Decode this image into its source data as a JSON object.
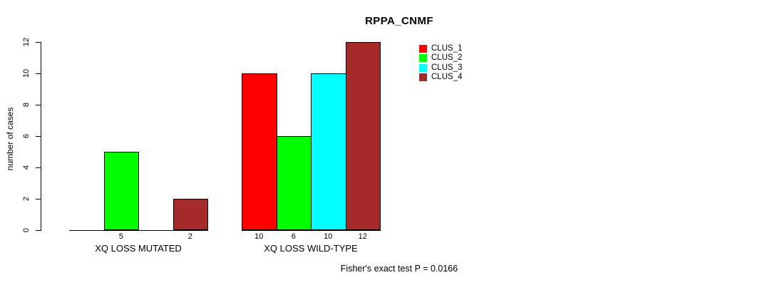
{
  "chart_data": {
    "type": "bar",
    "title": "RPPA_CNMF",
    "ylabel": "number of cases",
    "xlabel": "",
    "ylim": [
      0,
      12
    ],
    "yticks": [
      0,
      2,
      4,
      6,
      8,
      10,
      12
    ],
    "grid": false,
    "legend_position": "top-right-inside",
    "series": [
      {
        "name": "CLUS_1",
        "color": "#FF0000"
      },
      {
        "name": "CLUS_2",
        "color": "#00FF00"
      },
      {
        "name": "CLUS_3",
        "color": "#00FFFF"
      },
      {
        "name": "CLUS_4",
        "color": "#A52A2A"
      }
    ],
    "groups": [
      {
        "label": "XQ LOSS MUTATED",
        "values": [
          0,
          5,
          0,
          2
        ]
      },
      {
        "label": "XQ LOSS WILD-TYPE",
        "values": [
          10,
          6,
          10,
          12
        ]
      }
    ],
    "bar_value_labels": true,
    "footnote": "Fisher's exact test P = 0.0166",
    "axis_color": "#000000",
    "text_color": "#000000"
  }
}
